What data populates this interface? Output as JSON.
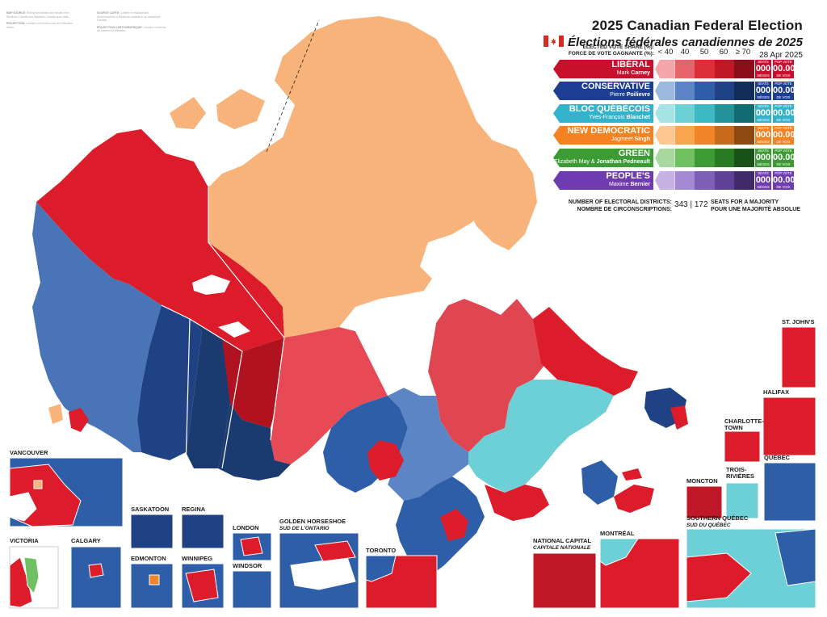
{
  "source_notes": [
    {
      "label": "MAP SOURCE:",
      "text": "Riding boundaries and results from Elections Canada and Statistics Canada open data."
    },
    {
      "label": "SOURCE CARTE:",
      "text": "Limites et résultats des circonscriptions d'Élections Canada et de Statistique Canada."
    },
    {
      "label": "PROJECTION:",
      "text": "Lambert conformal conic and Mercator insets."
    },
    {
      "label": "PROJECTION CARTOGRAPHIQUE:",
      "text": "Conique conforme de Lambert et Mercator."
    }
  ],
  "title": {
    "en": "2025 Canadian Federal Election",
    "fr": "Élections fédérales canadiennes de 2025",
    "date": "28 Apr 2025"
  },
  "legend": {
    "header_en": "ELECTED VOTE SHARE (%):",
    "header_fr": "FORCE DE VOTE GAGNANTE (%):",
    "bins": [
      "< 40",
      "40",
      "50",
      "60",
      "≥ 70"
    ],
    "seats_label_top": "SEATS",
    "seats_label_bottom": "SIÈGES",
    "pop_label_top": "POP VOTE",
    "pop_label_bottom": "DE VOIX",
    "parties": [
      {
        "name": "LIBÉRAL",
        "leader_first": "Mark",
        "leader_last": "Carney",
        "seats": "000",
        "pop": "00.00%",
        "colors": [
          "#f4a6aa",
          "#e8646c",
          "#dc2f3a",
          "#c01826",
          "#8b0f1a"
        ],
        "box": "#c8102e"
      },
      {
        "name": "CONSERVATIVE",
        "leader_first": "Pierre",
        "leader_last": "Poilievre",
        "seats": "000",
        "pop": "00.00%",
        "colors": [
          "#9db7de",
          "#5b85c4",
          "#2f5ea8",
          "#1f4284",
          "#132d5a"
        ],
        "box": "#1c3f94"
      },
      {
        "name": "BLOC QUÉBÉCOIS",
        "leader_first": "Yves-François",
        "leader_last": "Blanchet",
        "seats": "000",
        "pop": "00.00%",
        "colors": [
          "#a6e3e6",
          "#6dd0d6",
          "#3cb9c2",
          "#23939b",
          "#136b72"
        ],
        "box": "#33b2cc"
      },
      {
        "name": "NEW DEMOCRATIC",
        "leader_first": "Jagmeet",
        "leader_last": "Singh",
        "seats": "000",
        "pop": "00.00%",
        "colors": [
          "#fcc791",
          "#f9a54e",
          "#f1852a",
          "#c86a1c",
          "#8c4a12"
        ],
        "box": "#f58220"
      },
      {
        "name": "GREEN",
        "leader_first": "Elizabeth May &",
        "leader_last": "Jonathan Pedneault",
        "seats": "000",
        "pop": "00.00%",
        "colors": [
          "#a8d8a0",
          "#6fbf63",
          "#3d9b35",
          "#2a7a24",
          "#185218"
        ],
        "box": "#3d9b35"
      },
      {
        "name": "PEOPLE'S",
        "leader_first": "Maxime",
        "leader_last": "Bernier",
        "seats": "000",
        "pop": "00.00%",
        "colors": [
          "#c7b3e3",
          "#a48ad1",
          "#7e5fb8",
          "#5f4196",
          "#3f2a6a"
        ],
        "box": "#6f3bb0"
      }
    ]
  },
  "districts": {
    "label_en": "NUMBER OF ELECTORAL DISTRICTS:",
    "label_fr": "NOMBRE DE CIRCONSCRIPTIONS:",
    "count": "343",
    "majority": "172",
    "majority_en": "SEATS FOR A MAJORITY",
    "majority_fr": "POUR UNE MAJORITÉ ABSOLUE"
  },
  "insets": {
    "vancouver": "VANCOUVER",
    "victoria": "VICTORIA",
    "calgary": "CALGARY",
    "saskatoon": "SASKATOON",
    "regina": "REGINA",
    "edmonton": "EDMONTON",
    "winnipeg": "WINNIPEG",
    "london": "LONDON",
    "windsor": "WINDSOR",
    "golden_horseshoe": "GOLDEN HORSESHOE",
    "golden_horseshoe_fr": "SUD DE L'ONTARIO",
    "toronto": "TORONTO",
    "national_capital": "NATIONAL CAPITAL",
    "national_capital_fr": "CAPITALE NATIONALE",
    "montreal": "MONTRÉAL",
    "southern_quebec": "SOUTHERN QUÉBEC",
    "southern_quebec_fr": "SUD DU QUÉBEC",
    "moncton": "MONCTON",
    "trois_rivieres": "TROIS-RIVIÈRES",
    "quebec": "QUÉBEC",
    "charlottetown": "CHARLOTTE-TOWN",
    "halifax": "HALIFAX",
    "st_johns": "ST. JOHN'S"
  },
  "region_colors": {
    "yukon": "#dc1c2b",
    "nwt_nunavut": "#f8b37a",
    "bc_cons": "#4a74b8",
    "prairie_dark": "#1a3a70",
    "manitoba_north": "#b0121f",
    "ontario_north": "#e84a55",
    "quebec_north": "#e04652",
    "quebec_bloc": "#6dd0d6",
    "labrador": "#dc1c2b",
    "ontario_blue": "#2f5ea8",
    "atlantic": "#dc1c2b"
  }
}
